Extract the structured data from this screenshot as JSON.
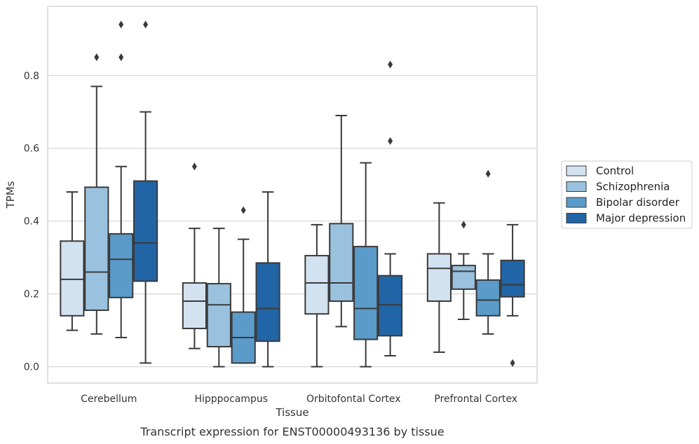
{
  "caption": "Transcript expression for ENST00000493136 by tissue",
  "chart_data": {
    "type": "boxplot",
    "title": "",
    "xlabel": "Tissue",
    "ylabel": "TPMs",
    "ylim": [
      -0.045,
      0.99
    ],
    "yticks": [
      0.0,
      0.2,
      0.4,
      0.6,
      0.8
    ],
    "ytick_labels": [
      "0.0",
      "0.2",
      "0.4",
      "0.6",
      "0.8"
    ],
    "grid": "horizontal",
    "legend_position": "right",
    "categories": [
      "Cerebellum",
      "Hipppocampus",
      "Orbitofontal Cortex",
      "Prefrontal Cortex"
    ],
    "series": [
      {
        "name": "Control",
        "color": "#d3e2f1",
        "boxes": [
          {
            "whislo": 0.1,
            "q1": 0.14,
            "med": 0.24,
            "q3": 0.345,
            "whishi": 0.48,
            "fliers": []
          },
          {
            "whislo": 0.05,
            "q1": 0.105,
            "med": 0.18,
            "q3": 0.23,
            "whishi": 0.38,
            "fliers": [
              0.55
            ]
          },
          {
            "whislo": 0.0,
            "q1": 0.145,
            "med": 0.23,
            "q3": 0.305,
            "whishi": 0.39,
            "fliers": []
          },
          {
            "whislo": 0.04,
            "q1": 0.18,
            "med": 0.27,
            "q3": 0.31,
            "whishi": 0.45,
            "fliers": []
          }
        ]
      },
      {
        "name": "Schizophrenia",
        "color": "#9ac2de",
        "boxes": [
          {
            "whislo": 0.09,
            "q1": 0.155,
            "med": 0.26,
            "q3": 0.493,
            "whishi": 0.77,
            "fliers": [
              0.85
            ]
          },
          {
            "whislo": 0.0,
            "q1": 0.055,
            "med": 0.17,
            "q3": 0.228,
            "whishi": 0.38,
            "fliers": []
          },
          {
            "whislo": 0.11,
            "q1": 0.18,
            "med": 0.23,
            "q3": 0.393,
            "whishi": 0.69,
            "fliers": []
          },
          {
            "whislo": 0.13,
            "q1": 0.213,
            "med": 0.262,
            "q3": 0.278,
            "whishi": 0.31,
            "fliers": [
              0.39
            ]
          }
        ]
      },
      {
        "name": "Bipolar disorder",
        "color": "#5a9bc9",
        "boxes": [
          {
            "whislo": 0.08,
            "q1": 0.19,
            "med": 0.295,
            "q3": 0.365,
            "whishi": 0.55,
            "fliers": [
              0.85,
              0.94
            ]
          },
          {
            "whislo": 0.01,
            "q1": 0.01,
            "med": 0.08,
            "q3": 0.15,
            "whishi": 0.35,
            "fliers": [
              0.43
            ]
          },
          {
            "whislo": 0.0,
            "q1": 0.075,
            "med": 0.16,
            "q3": 0.33,
            "whishi": 0.56,
            "fliers": []
          },
          {
            "whislo": 0.09,
            "q1": 0.14,
            "med": 0.183,
            "q3": 0.238,
            "whishi": 0.31,
            "fliers": [
              0.53
            ]
          }
        ]
      },
      {
        "name": "Major depression",
        "color": "#2265a6",
        "boxes": [
          {
            "whislo": 0.01,
            "q1": 0.235,
            "med": 0.34,
            "q3": 0.51,
            "whishi": 0.7,
            "fliers": [
              0.94
            ]
          },
          {
            "whislo": 0.0,
            "q1": 0.07,
            "med": 0.16,
            "q3": 0.285,
            "whishi": 0.48,
            "fliers": []
          },
          {
            "whislo": 0.03,
            "q1": 0.085,
            "med": 0.17,
            "q3": 0.25,
            "whishi": 0.31,
            "fliers": [
              0.62,
              0.83
            ]
          },
          {
            "whislo": 0.14,
            "q1": 0.192,
            "med": 0.225,
            "q3": 0.292,
            "whishi": 0.39,
            "fliers": [
              0.01
            ]
          }
        ]
      }
    ]
  }
}
